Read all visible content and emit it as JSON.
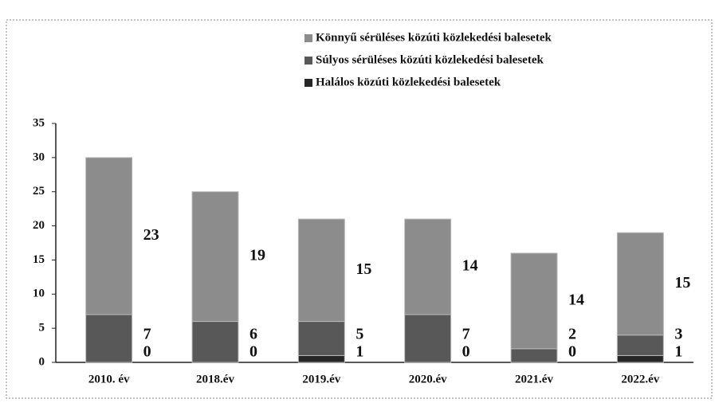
{
  "chart_data": {
    "type": "stacked_bar",
    "categories": [
      "2010. év",
      "2018.év",
      "2019.év",
      "2020.év",
      "2021.év",
      "2022.év"
    ],
    "series": [
      {
        "name": "Könnyű sérüléses közúti közlekedési balesetek",
        "color": "#8c8c8c",
        "values": [
          23,
          19,
          15,
          14,
          14,
          15
        ]
      },
      {
        "name": "Súlyos sérüléses közúti közlekedési balesetek",
        "color": "#585858",
        "values": [
          7,
          6,
          5,
          7,
          2,
          3
        ]
      },
      {
        "name": "Halálos közúti közlekedési balesetek",
        "color": "#262626",
        "values": [
          0,
          0,
          1,
          0,
          0,
          1
        ]
      }
    ],
    "ylim": [
      0,
      35
    ],
    "yticks": [
      0,
      5,
      10,
      15,
      20,
      25,
      30,
      35
    ],
    "grid": false,
    "legend": "top"
  }
}
